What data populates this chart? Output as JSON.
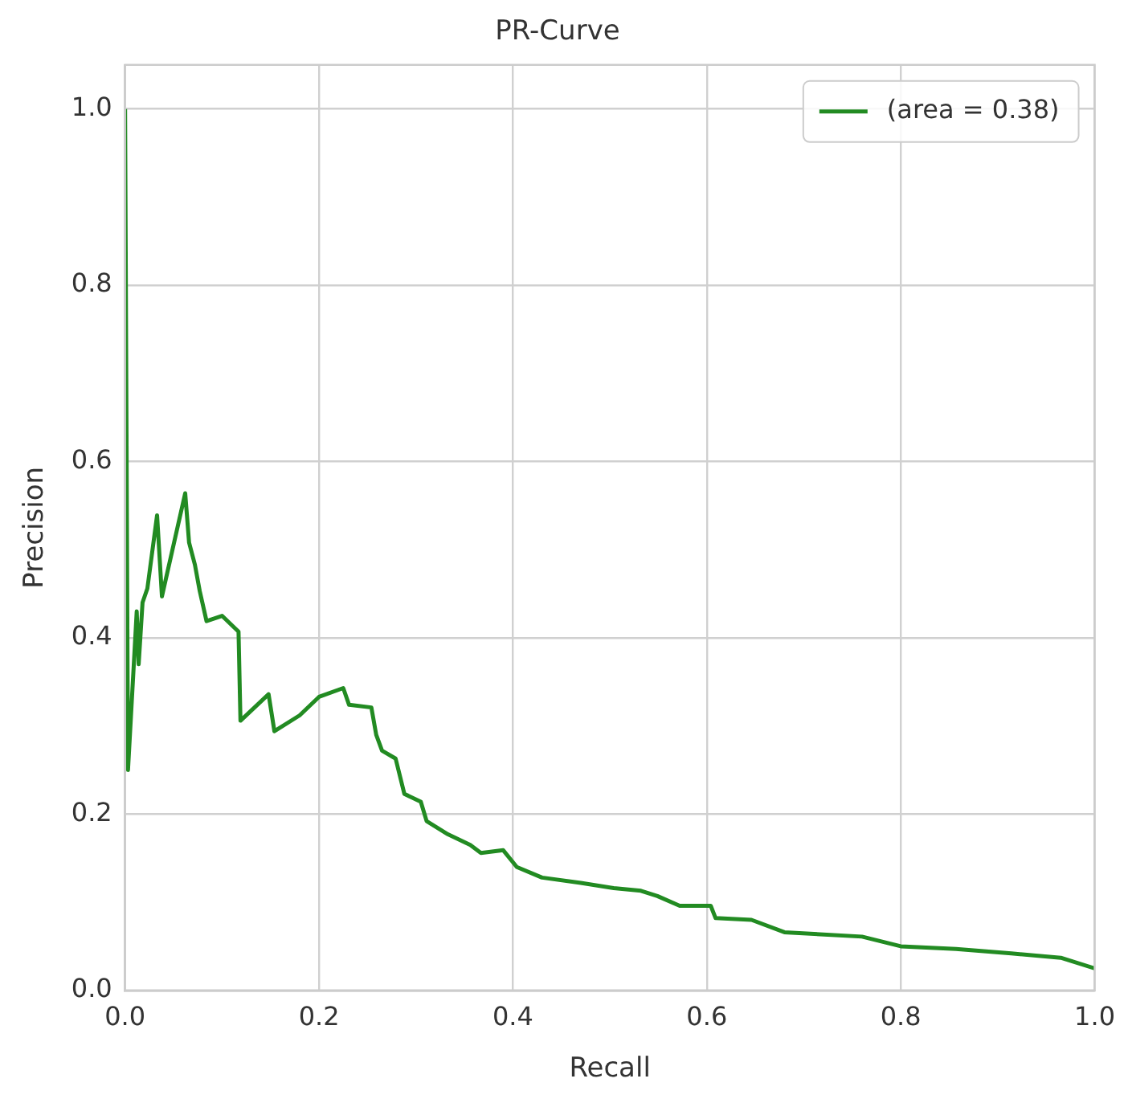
{
  "chart_data": {
    "type": "line",
    "title": "PR-Curve",
    "xlabel": "Recall",
    "ylabel": "Precision",
    "xlim": [
      0,
      1
    ],
    "ylim": [
      0,
      1.05
    ],
    "xticks": [
      {
        "value": 0,
        "label": "0.0"
      },
      {
        "value": 0.2,
        "label": "0.2"
      },
      {
        "value": 0.4,
        "label": "0.4"
      },
      {
        "value": 0.6,
        "label": "0.6"
      },
      {
        "value": 0.8,
        "label": "0.8"
      },
      {
        "value": 1,
        "label": "1.0"
      }
    ],
    "yticks": [
      {
        "value": 0,
        "label": "0.0"
      },
      {
        "value": 0.2,
        "label": "0.2"
      },
      {
        "value": 0.4,
        "label": "0.4"
      },
      {
        "value": 0.6,
        "label": "0.6"
      },
      {
        "value": 0.8,
        "label": "0.8"
      },
      {
        "value": 1,
        "label": "1.0"
      }
    ],
    "grid": true,
    "legend": "top right",
    "marker": "none",
    "line_style": "solid",
    "series": [
      {
        "name": "(area = 0.38)",
        "color": "#228b22",
        "x": [
          0,
          0.003,
          0.012,
          0.014,
          0.018,
          0.023,
          0.033,
          0.038,
          0.062,
          0.066,
          0.072,
          0.077,
          0.084,
          0.1,
          0.117,
          0.119,
          0.148,
          0.154,
          0.18,
          0.2,
          0.225,
          0.231,
          0.254,
          0.259,
          0.265,
          0.279,
          0.288,
          0.305,
          0.311,
          0.333,
          0.356,
          0.367,
          0.39,
          0.404,
          0.43,
          0.47,
          0.504,
          0.532,
          0.549,
          0.572,
          0.604,
          0.609,
          0.646,
          0.68,
          0.76,
          0.8,
          0.857,
          0.914,
          0.965,
          1
        ],
        "values": [
          1,
          0.25,
          0.43,
          0.37,
          0.44,
          0.456,
          0.539,
          0.447,
          0.564,
          0.508,
          0.483,
          0.453,
          0.419,
          0.425,
          0.407,
          0.306,
          0.336,
          0.294,
          0.312,
          0.333,
          0.343,
          0.324,
          0.321,
          0.29,
          0.272,
          0.263,
          0.223,
          0.214,
          0.192,
          0.177,
          0.165,
          0.156,
          0.159,
          0.14,
          0.128,
          0.122,
          0.116,
          0.113,
          0.107,
          0.096,
          0.096,
          0.082,
          0.08,
          0.066,
          0.061,
          0.05,
          0.047,
          0.042,
          0.037,
          0.025
        ]
      }
    ]
  }
}
